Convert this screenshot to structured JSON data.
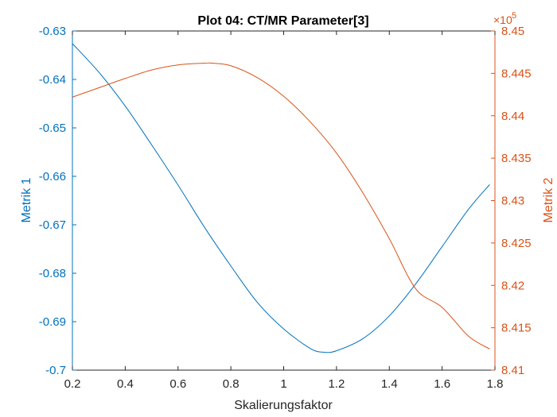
{
  "chart_data": {
    "type": "line",
    "title": "Plot 04: CT/MR Parameter[3]",
    "xlabel": "Skalierungsfaktor",
    "ylabel_left": "Metrik 1",
    "ylabel_right": "Metrik 2",
    "xlim": [
      0.2,
      1.8
    ],
    "ylim_left": [
      -0.7,
      -0.63
    ],
    "ylim_right": [
      841000,
      845000
    ],
    "right_exponent_label": "×10",
    "right_exponent_power": "5",
    "x_ticks": [
      0.2,
      0.4,
      0.6,
      0.8,
      1.0,
      1.2,
      1.4,
      1.6,
      1.8
    ],
    "x_tick_labels": [
      "0.2",
      "0.4",
      "0.6",
      "0.8",
      "1",
      "1.2",
      "1.4",
      "1.6",
      "1.8"
    ],
    "left_ticks": [
      -0.7,
      -0.69,
      -0.68,
      -0.67,
      -0.66,
      -0.65,
      -0.64,
      -0.63
    ],
    "left_tick_labels": [
      "-0.7",
      "-0.69",
      "-0.68",
      "-0.67",
      "-0.66",
      "-0.65",
      "-0.64",
      "-0.63"
    ],
    "right_ticks": [
      841000,
      841500,
      842000,
      842500,
      843000,
      843500,
      844000,
      844500,
      845000
    ],
    "right_tick_labels": [
      "8.41",
      "8.415",
      "8.42",
      "8.425",
      "8.43",
      "8.435",
      "8.44",
      "8.445",
      "8.45"
    ],
    "grid": false,
    "colors": {
      "left": "#0072BD",
      "right": "#D95319"
    },
    "series": [
      {
        "axis": "left",
        "x": [
          0.2,
          0.3,
          0.4,
          0.5,
          0.6,
          0.7,
          0.8,
          0.9,
          1.0,
          1.1,
          1.15,
          1.2,
          1.3,
          1.4,
          1.5,
          1.6,
          1.7,
          1.78
        ],
        "y": [
          -0.6326,
          -0.6385,
          -0.6455,
          -0.6535,
          -0.6618,
          -0.6705,
          -0.6785,
          -0.686,
          -0.6915,
          -0.6955,
          -0.6963,
          -0.696,
          -0.6935,
          -0.6888,
          -0.6822,
          -0.6745,
          -0.6668,
          -0.6617
        ]
      },
      {
        "axis": "right",
        "x": [
          0.2,
          0.3,
          0.4,
          0.5,
          0.6,
          0.7,
          0.73,
          0.8,
          0.9,
          1.0,
          1.1,
          1.2,
          1.3,
          1.4,
          1.5,
          1.6,
          1.7,
          1.78
        ],
        "y": [
          844220,
          844330,
          844440,
          844540,
          844600,
          844620,
          844620,
          844590,
          844450,
          844230,
          843930,
          843560,
          843090,
          842550,
          841960,
          841740,
          841400,
          841250
        ]
      }
    ]
  }
}
